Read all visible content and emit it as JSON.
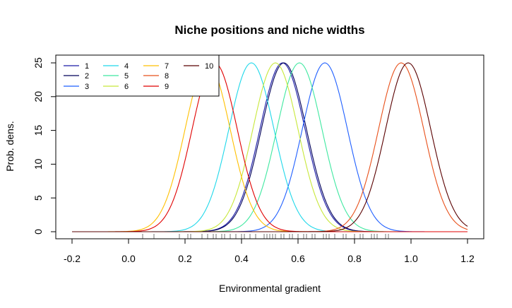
{
  "chart_data": {
    "type": "line",
    "title": "Niche positions and niche widths",
    "xlabel": "Environmental gradient",
    "ylabel": "Prob. dens.",
    "xlim": [
      -0.2,
      1.2
    ],
    "ylim": [
      0,
      25
    ],
    "x_ticks": [
      "-0.2",
      "0.0",
      "0.2",
      "0.4",
      "0.6",
      "0.8",
      "1.0",
      "1.2"
    ],
    "x_tick_values": [
      -0.2,
      0.0,
      0.2,
      0.4,
      0.6,
      0.8,
      1.0,
      1.2
    ],
    "y_ticks": [
      "0",
      "5",
      "10",
      "15",
      "20",
      "25"
    ],
    "y_tick_values": [
      0,
      5,
      10,
      15,
      20,
      25
    ],
    "grid": false,
    "legend_position": "top-left",
    "legend_columns": 4,
    "series": [
      {
        "name": "1",
        "color": "#1a1aa8",
        "mean": 0.545,
        "sd": 0.08,
        "peak": 25
      },
      {
        "name": "2",
        "color": "#00005a",
        "mean": 0.55,
        "sd": 0.08,
        "peak": 25
      },
      {
        "name": "3",
        "color": "#1f5fff",
        "mean": 0.695,
        "sd": 0.08,
        "peak": 25
      },
      {
        "name": "4",
        "color": "#1fd8ea",
        "mean": 0.435,
        "sd": 0.08,
        "peak": 25
      },
      {
        "name": "5",
        "color": "#3ee8a0",
        "mean": 0.605,
        "sd": 0.08,
        "peak": 25
      },
      {
        "name": "6",
        "color": "#c8e83a",
        "mean": 0.52,
        "sd": 0.08,
        "peak": 25
      },
      {
        "name": "7",
        "color": "#ffc000",
        "mean": 0.28,
        "sd": 0.08,
        "peak": 25
      },
      {
        "name": "8",
        "color": "#e8501a",
        "mean": 0.965,
        "sd": 0.08,
        "peak": 25
      },
      {
        "name": "9",
        "color": "#e00000",
        "mean": 0.305,
        "sd": 0.08,
        "peak": 25
      },
      {
        "name": "10",
        "color": "#5a0000",
        "mean": 0.99,
        "sd": 0.08,
        "peak": 25
      }
    ],
    "rug": [
      0.05,
      0.09,
      0.18,
      0.21,
      0.22,
      0.26,
      0.28,
      0.3,
      0.31,
      0.33,
      0.34,
      0.36,
      0.38,
      0.4,
      0.41,
      0.43,
      0.45,
      0.48,
      0.49,
      0.5,
      0.51,
      0.52,
      0.54,
      0.55,
      0.57,
      0.58,
      0.6,
      0.62,
      0.63,
      0.65,
      0.66,
      0.69,
      0.7,
      0.71,
      0.73,
      0.76,
      0.77,
      0.8,
      0.82,
      0.83,
      0.86,
      0.87,
      0.88,
      0.91,
      0.92
    ]
  }
}
